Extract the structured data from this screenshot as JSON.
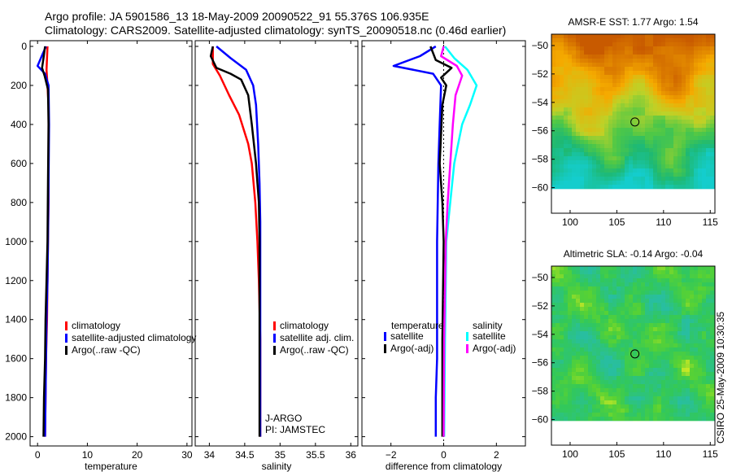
{
  "title_line1": "Argo profile: JA 5901586_13 18-May-2009 20090522_91 55.376S 106.935E",
  "title_line2": "Climatology: CARS2009. Satellite-adjusted climatology: synTS_20090518.nc (0.46d earlier)",
  "side_label": "CSIRO 25-May-2009 10:30:35",
  "colors": {
    "clim": "#ff0000",
    "sat": "#0000ff",
    "argo": "#000000",
    "sal_sat": "#00ffff",
    "sal_argo": "#ff00ff"
  },
  "chart_data": [
    {
      "id": "temperature",
      "type": "line",
      "xlabel": "temperature",
      "xlim": [
        -1.5,
        31
      ],
      "ylim": [
        0,
        2060
      ],
      "xticks": [
        0,
        10,
        20,
        30
      ],
      "yticks": [
        0,
        200,
        400,
        600,
        800,
        1000,
        1200,
        1400,
        1600,
        1800,
        2000
      ],
      "yticklabels": [
        "0",
        "200",
        "400",
        "600",
        "800",
        "1000",
        "1200",
        "1400",
        "1600",
        "1800",
        "2000"
      ],
      "y_inverted": true,
      "legend": [
        "climatology",
        "satellite-adjusted climatology",
        "Argo(..raw -QC)"
      ],
      "series": [
        {
          "name": "climatology",
          "color_key": "clim",
          "x": [
            2.0,
            1.9,
            1.8,
            2.0,
            2.2,
            2.2,
            2.2,
            2.1,
            2.0,
            1.9,
            1.7,
            1.6,
            1.5
          ],
          "y": [
            0,
            60,
            120,
            200,
            300,
            500,
            800,
            1000,
            1200,
            1400,
            1600,
            1800,
            2000
          ]
        },
        {
          "name": "satellite-adjusted climatology",
          "color_key": "sat",
          "x": [
            1.7,
            1.0,
            0.0,
            1.5,
            2.2,
            2.3,
            2.2,
            2.1,
            2.0,
            1.8,
            1.7,
            1.6,
            1.5
          ],
          "y": [
            0,
            40,
            100,
            140,
            200,
            400,
            700,
            1000,
            1200,
            1400,
            1600,
            1800,
            2000
          ]
        },
        {
          "name": "Argo(..raw -QC)",
          "color_key": "argo",
          "x": [
            1.5,
            1.2,
            0.9,
            1.4,
            2.1,
            2.2,
            2.1,
            2.0,
            1.8,
            1.6,
            1.5,
            1.3,
            1.2
          ],
          "y": [
            0,
            60,
            110,
            150,
            220,
            400,
            700,
            1000,
            1200,
            1400,
            1600,
            1800,
            2000
          ]
        }
      ]
    },
    {
      "id": "salinity",
      "type": "line",
      "xlabel": "salinity",
      "xlim": [
        33.8,
        36.1
      ],
      "ylim": [
        0,
        2060
      ],
      "xticks": [
        34,
        34.5,
        35,
        35.5,
        36
      ],
      "xticklabels": [
        "34",
        "34.5",
        "35",
        "35.5",
        "36"
      ],
      "y_inverted": true,
      "legend": [
        "climatology",
        "satellite adj. clim.",
        "Argo(..raw -QC)"
      ],
      "annotation": [
        "J-ARGO",
        "PI: JAMSTEC"
      ],
      "series": [
        {
          "name": "climatology",
          "color_key": "clim",
          "x": [
            34.05,
            34.05,
            34.15,
            34.28,
            34.42,
            34.55,
            34.6,
            34.65,
            34.68,
            34.7,
            34.72,
            34.72,
            34.72
          ],
          "y": [
            0,
            90,
            150,
            250,
            350,
            500,
            600,
            800,
            1000,
            1200,
            1500,
            1800,
            2000
          ]
        },
        {
          "name": "satellite adj. clim.",
          "color_key": "sat",
          "x": [
            34.1,
            34.3,
            34.52,
            34.62,
            34.66,
            34.69,
            34.71,
            34.72,
            34.72,
            34.72,
            34.72,
            34.72
          ],
          "y": [
            0,
            60,
            120,
            200,
            300,
            500,
            700,
            900,
            1200,
            1500,
            1800,
            2000
          ]
        },
        {
          "name": "Argo(..raw -QC)",
          "color_key": "argo",
          "x": [
            34.05,
            34.02,
            34.1,
            34.3,
            34.45,
            34.55,
            34.6,
            34.63,
            34.66,
            34.68,
            34.7,
            34.71,
            34.71,
            34.71,
            34.71
          ],
          "y": [
            0,
            50,
            110,
            140,
            170,
            250,
            400,
            500,
            600,
            700,
            800,
            1000,
            1200,
            1600,
            2000
          ]
        }
      ]
    },
    {
      "id": "difference",
      "type": "line",
      "xlabel": "difference from climatology",
      "xlim": [
        -3.1,
        3.1
      ],
      "ylim": [
        0,
        2060
      ],
      "xticks": [
        -2,
        0,
        2
      ],
      "xticklabels": [
        "−2",
        "0",
        "2"
      ],
      "y_inverted": true,
      "legend_temperature_title": "temperature",
      "legend_salinity_title": "salinity",
      "legend_temperature": [
        "satellite",
        "Argo(-adj)"
      ],
      "legend_salinity": [
        "satellite",
        "Argo(-adj)"
      ],
      "series": [
        {
          "name": "temperature satellite",
          "color_key": "sat",
          "x": [
            -0.3,
            -0.9,
            -1.9,
            -0.4,
            -0.1,
            -0.15,
            -0.2,
            -0.25,
            -0.25,
            -0.25,
            -0.3,
            -0.3
          ],
          "y": [
            0,
            50,
            100,
            140,
            200,
            400,
            600,
            1000,
            1400,
            1600,
            1800,
            2000
          ]
        },
        {
          "name": "temperature Argo(-adj)",
          "color_key": "argo",
          "x": [
            -0.5,
            -0.3,
            0.3,
            -0.1,
            0.1,
            -0.05,
            -0.1,
            -0.15,
            -0.05,
            0.0,
            -0.05,
            -0.05
          ],
          "y": [
            0,
            70,
            110,
            160,
            200,
            300,
            450,
            600,
            800,
            1000,
            1500,
            2000
          ]
        },
        {
          "name": "salinity satellite",
          "color_key": "sal_sat",
          "x": [
            0.05,
            0.4,
            0.9,
            1.25,
            1.0,
            0.7,
            0.55,
            0.4,
            0.25,
            0.1,
            0.05,
            0.02
          ],
          "y": [
            0,
            60,
            120,
            200,
            300,
            400,
            500,
            600,
            800,
            1000,
            1500,
            2000
          ]
        },
        {
          "name": "salinity Argo(-adj)",
          "color_key": "sal_argo",
          "x": [
            0.0,
            -0.1,
            0.5,
            0.7,
            0.45,
            0.35,
            0.25,
            0.15,
            0.08,
            0.02,
            0.0
          ],
          "y": [
            0,
            50,
            100,
            150,
            250,
            400,
            600,
            800,
            1000,
            1500,
            2000
          ]
        }
      ]
    },
    {
      "id": "sst_map",
      "type": "heatmap",
      "title": "AMSR-E SST: 1.77  Argo: 1.54",
      "xlim": [
        98,
        115.5
      ],
      "ylim": [
        -61.8,
        -49.2
      ],
      "xticks": [
        100,
        105,
        110,
        115
      ],
      "yticks": [
        -50,
        -52,
        -54,
        -56,
        -58,
        -60
      ],
      "yticklabels": [
        "−50",
        "−52",
        "−54",
        "−56",
        "−58",
        "−60"
      ],
      "data_lat_min": -60.1,
      "marker": {
        "lon": 106.935,
        "lat": -55.376
      }
    },
    {
      "id": "sla_map",
      "type": "heatmap",
      "title": "Altimetric SLA: -0.14  Argo: -0.04",
      "xlim": [
        98,
        115.5
      ],
      "ylim": [
        -61.8,
        -49.2
      ],
      "xticks": [
        100,
        105,
        110,
        115
      ],
      "yticks": [
        -50,
        -52,
        -54,
        -56,
        -58,
        -60
      ],
      "yticklabels": [
        "−50",
        "−52",
        "−54",
        "−56",
        "−58",
        "−60"
      ],
      "data_lat_min": -60.1,
      "marker": {
        "lon": 106.935,
        "lat": -55.376
      }
    }
  ]
}
